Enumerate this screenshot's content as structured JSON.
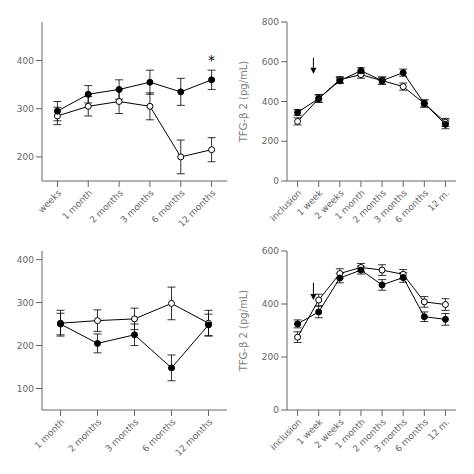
{
  "chart_data": [
    {
      "type": "line",
      "categories": [
        "weeks",
        "1 month",
        "2 months",
        "3 months",
        "6 months",
        "12 months"
      ],
      "series": [
        {
          "color": "#000000",
          "marker": "filled",
          "values": [
            295,
            330,
            340,
            355,
            335,
            360
          ],
          "errors": [
            20,
            18,
            20,
            25,
            28,
            20
          ]
        },
        {
          "color": "#000000",
          "marker": "open",
          "values": [
            285,
            305,
            315,
            305,
            200,
            215
          ],
          "errors": [
            18,
            20,
            25,
            28,
            35,
            25
          ]
        }
      ],
      "ylim": [
        150,
        480
      ],
      "yticks": [
        200,
        300,
        400
      ],
      "annotations": [
        {
          "text": "*",
          "x": "12 months"
        }
      ]
    },
    {
      "type": "line",
      "categories": [
        "inclusion",
        "1 week",
        "2 weeks",
        "1 month",
        "2 months",
        "3 months",
        "6 months",
        "12 m."
      ],
      "series": [
        {
          "color": "#000000",
          "marker": "filled",
          "values": [
            345,
            415,
            505,
            555,
            505,
            545,
            390,
            285
          ],
          "errors": [
            15,
            18,
            15,
            15,
            18,
            18,
            18,
            22
          ]
        },
        {
          "color": "#000000",
          "marker": "open",
          "values": [
            300,
            415,
            510,
            535,
            505,
            475,
            390,
            295
          ],
          "errors": [
            18,
            20,
            15,
            18,
            18,
            18,
            18,
            20
          ]
        }
      ],
      "ylim": [
        0,
        800
      ],
      "yticks": [
        0,
        200,
        400,
        600,
        800
      ],
      "ylabel": "TFG-β 2 (pg/mL)",
      "arrow": {
        "x": 0.75,
        "y_from": 620,
        "y_to": 540
      }
    },
    {
      "type": "line",
      "categories": [
        "1 month",
        "2 months",
        "3 months",
        "6 months",
        "12 months"
      ],
      "series": [
        {
          "color": "#000000",
          "marker": "filled",
          "values": [
            250,
            205,
            225,
            148,
            248
          ],
          "errors": [
            25,
            22,
            25,
            30,
            25
          ]
        },
        {
          "color": "#000000",
          "marker": "open",
          "values": [
            252,
            258,
            262,
            298,
            252
          ],
          "errors": [
            30,
            25,
            25,
            38,
            30
          ]
        }
      ],
      "ylim": [
        50,
        420
      ],
      "yticks": [
        100,
        200,
        300,
        400
      ]
    },
    {
      "type": "line",
      "categories": [
        "inclusion",
        "1 week",
        "2 weeks",
        "1 month",
        "2 months",
        "3 months",
        "6 months",
        "12 m."
      ],
      "series": [
        {
          "color": "#000000",
          "marker": "filled",
          "values": [
            325,
            370,
            498,
            528,
            472,
            500,
            352,
            342
          ],
          "errors": [
            15,
            22,
            18,
            15,
            20,
            18,
            18,
            22
          ]
        },
        {
          "color": "#000000",
          "marker": "open",
          "values": [
            275,
            415,
            515,
            538,
            528,
            512,
            408,
            398
          ],
          "errors": [
            20,
            22,
            18,
            15,
            20,
            18,
            20,
            22
          ]
        }
      ],
      "ylim": [
        0,
        600
      ],
      "yticks": [
        0,
        200,
        400,
        600
      ],
      "ylabel": "TFG-β 2 (pg/mL)",
      "arrow": {
        "x": 0.75,
        "y_from": 480,
        "y_to": 415
      }
    }
  ]
}
